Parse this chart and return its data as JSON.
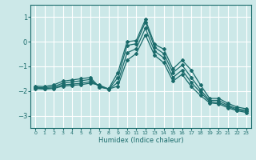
{
  "xlabel": "Humidex (Indice chaleur)",
  "bg_color": "#cce8e8",
  "grid_color": "#ffffff",
  "line_color": "#1a6b6b",
  "xlim": [
    -0.5,
    23.5
  ],
  "ylim": [
    -3.5,
    1.5
  ],
  "yticks": [
    -3,
    -2,
    -1,
    0,
    1
  ],
  "xticks": [
    0,
    1,
    2,
    3,
    4,
    5,
    6,
    7,
    8,
    9,
    10,
    11,
    12,
    13,
    14,
    15,
    16,
    17,
    18,
    19,
    20,
    21,
    22,
    23
  ],
  "line1": {
    "x": [
      0,
      1,
      2,
      3,
      4,
      5,
      6,
      7,
      8,
      9,
      10,
      11,
      12,
      13,
      14,
      15,
      16,
      17,
      18,
      19,
      20,
      21,
      22,
      23
    ],
    "y": [
      -1.8,
      -1.82,
      -1.75,
      -1.6,
      -1.55,
      -1.5,
      -1.45,
      -1.85,
      -1.9,
      -1.25,
      0.0,
      0.05,
      0.9,
      -0.1,
      -0.3,
      -1.1,
      -0.75,
      -1.15,
      -1.75,
      -2.3,
      -2.3,
      -2.5,
      -2.65,
      -2.72
    ]
  },
  "line2": {
    "x": [
      0,
      1,
      2,
      3,
      4,
      5,
      6,
      7,
      8,
      9,
      10,
      11,
      12,
      13,
      14,
      15,
      16,
      17,
      18,
      19,
      20,
      21,
      22,
      23
    ],
    "y": [
      -1.85,
      -1.87,
      -1.82,
      -1.68,
      -1.63,
      -1.58,
      -1.53,
      -1.83,
      -1.92,
      -1.45,
      -0.15,
      -0.08,
      0.8,
      -0.22,
      -0.48,
      -1.25,
      -0.95,
      -1.45,
      -1.95,
      -2.38,
      -2.38,
      -2.58,
      -2.72,
      -2.78
    ]
  },
  "line3": {
    "x": [
      0,
      1,
      2,
      3,
      4,
      5,
      6,
      7,
      8,
      9,
      10,
      11,
      12,
      13,
      14,
      15,
      16,
      17,
      18,
      19,
      20,
      21,
      22,
      23
    ],
    "y": [
      -1.88,
      -1.9,
      -1.87,
      -1.75,
      -1.72,
      -1.68,
      -1.62,
      -1.78,
      -1.93,
      -1.65,
      -0.45,
      -0.28,
      0.55,
      -0.38,
      -0.65,
      -1.45,
      -1.15,
      -1.65,
      -2.05,
      -2.43,
      -2.47,
      -2.62,
      -2.77,
      -2.83
    ]
  },
  "line4": {
    "x": [
      0,
      1,
      2,
      3,
      4,
      5,
      6,
      7,
      8,
      9,
      10,
      11,
      12,
      13,
      14,
      15,
      16,
      17,
      18,
      19,
      20,
      21,
      22,
      23
    ],
    "y": [
      -1.9,
      -1.92,
      -1.9,
      -1.8,
      -1.77,
      -1.74,
      -1.68,
      -1.76,
      -1.92,
      -1.8,
      -0.75,
      -0.48,
      0.28,
      -0.55,
      -0.85,
      -1.6,
      -1.32,
      -1.82,
      -2.18,
      -2.48,
      -2.52,
      -2.68,
      -2.8,
      -2.87
    ]
  }
}
